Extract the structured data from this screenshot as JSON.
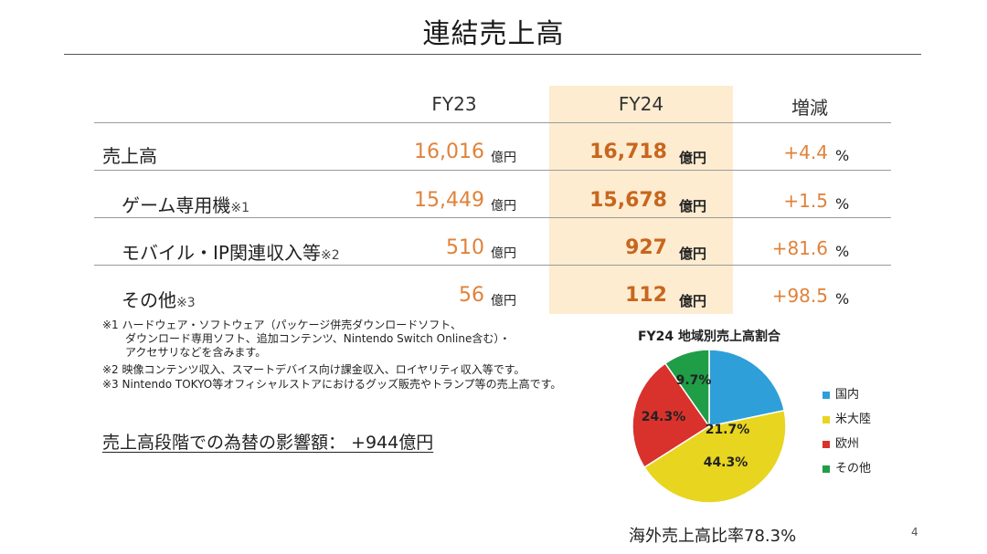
{
  "title": "連結売上高",
  "table": {
    "headers": {
      "fy23": "FY23",
      "fy24": "FY24",
      "change": "増減"
    },
    "rows": [
      {
        "label": "売上高",
        "note": "",
        "fy23": "16,016",
        "fy24": "16,718",
        "change": "+4.4"
      },
      {
        "label": "ゲーム専用機",
        "note": "※1",
        "fy23": "15,449",
        "fy24": "15,678",
        "change": "+1.5"
      },
      {
        "label": "モバイル・IP関連収入等",
        "note": "※2",
        "fy23": "510",
        "fy24": "927",
        "change": "+81.6"
      },
      {
        "label": "その他",
        "note": "※3",
        "fy23": "56",
        "fy24": "112",
        "change": "+98.5"
      }
    ],
    "unit": "億円",
    "pct_unit": "%"
  },
  "footnotes": [
    "※1 ハードウェア・ソフトウェア（パッケージ併売ダウンロードソフト、",
    "ダウンロード専用ソフト、追加コンテンツ、Nintendo Switch Online含む）・",
    "アクセサリなどを含みます。",
    "※2 映像コンテンツ収入、スマートデバイス向け課金収入、ロイヤリティ収入等です。",
    "※3 Nintendo TOKYO等オフィシャルストアにおけるグッズ販売やトランプ等の売上高です。"
  ],
  "fx_impact": "売上高段階での為替の影響額： +944億円",
  "chart_data": {
    "type": "pie",
    "title": "FY24 地域別売上高割合",
    "slices": [
      {
        "name": "国内",
        "value": 21.7,
        "label": "21.7%",
        "color": "#2e9fd9"
      },
      {
        "name": "米大陸",
        "value": 44.3,
        "label": "44.3%",
        "color": "#e8d51f"
      },
      {
        "name": "欧州",
        "value": 24.3,
        "label": "24.3%",
        "color": "#d9322c"
      },
      {
        "name": "その他",
        "value": 9.7,
        "label": "9.7%",
        "color": "#1f9d47"
      }
    ],
    "legend_placement": "right"
  },
  "overseas_ratio": "海外売上高比率78.3%",
  "page_number": "4"
}
